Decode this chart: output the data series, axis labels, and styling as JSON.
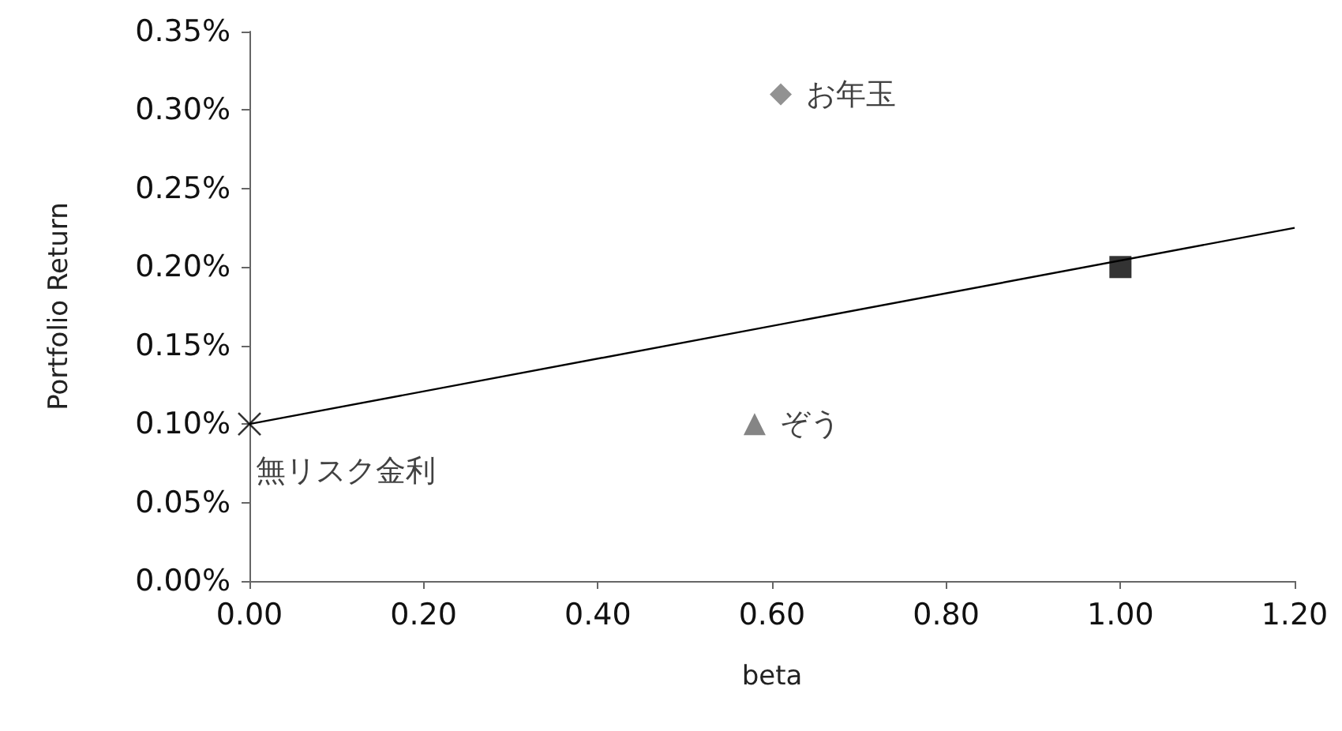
{
  "chart_data": {
    "type": "scatter",
    "xlabel": "beta",
    "ylabel": "Portfolio Return",
    "grid": false,
    "legend": false,
    "xlim": [
      0,
      1.2
    ],
    "ylim": [
      0,
      0.35
    ],
    "xticks": [
      {
        "value": 0,
        "label": "0.00"
      },
      {
        "value": 0.2,
        "label": "0.20"
      },
      {
        "value": 0.4,
        "label": "0.40"
      },
      {
        "value": 0.6,
        "label": "0.60"
      },
      {
        "value": 0.8,
        "label": "0.80"
      },
      {
        "value": 1,
        "label": "1.00"
      },
      {
        "value": 1.2,
        "label": "1.20"
      }
    ],
    "yticks": [
      {
        "value": 0,
        "label": "0.00%"
      },
      {
        "value": 0.05,
        "label": "0.05%"
      },
      {
        "value": 0.1,
        "label": "0.10%"
      },
      {
        "value": 0.15,
        "label": "0.15%"
      },
      {
        "value": 0.2,
        "label": "0.20%"
      },
      {
        "value": 0.25,
        "label": "0.25%"
      },
      {
        "value": 0.3,
        "label": "0.30%"
      },
      {
        "value": 0.35,
        "label": "0.35%"
      }
    ],
    "series": [
      {
        "type": "line",
        "marker": "none",
        "color": "#000000",
        "x": [
          0,
          1.2
        ],
        "values": [
          0.1,
          0.225
        ]
      },
      {
        "name": "無リスク金利",
        "marker": "cross",
        "color": "#000000",
        "x": [
          0
        ],
        "values": [
          0.1
        ]
      },
      {
        "name": "お年玉",
        "marker": "diamond",
        "color": "#777777",
        "x": [
          0.61
        ],
        "values": [
          0.31
        ]
      },
      {
        "name": "ぞう",
        "marker": "triangle",
        "color": "#666666",
        "x": [
          0.58
        ],
        "values": [
          0.1
        ]
      },
      {
        "marker": "square",
        "color": "#000000",
        "x": [
          1.0
        ],
        "values": [
          0.2
        ]
      }
    ]
  }
}
